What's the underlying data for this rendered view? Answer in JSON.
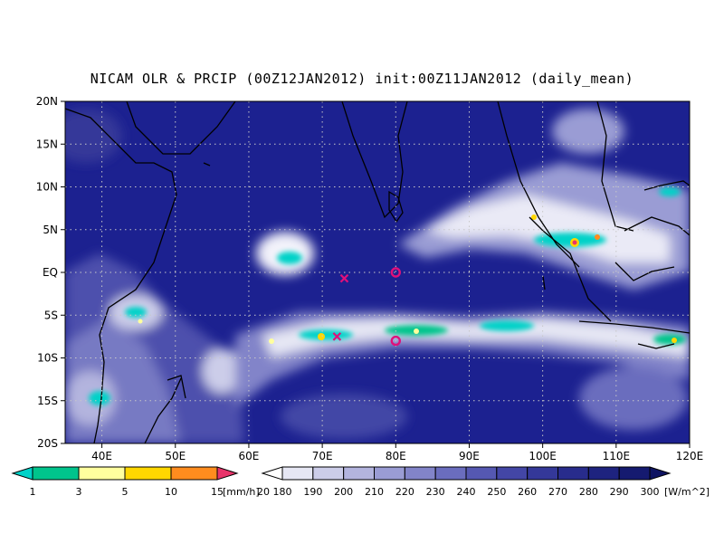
{
  "title": "NICAM OLR & PRCIP (00Z12JAN2012) init:00Z11JAN2012 (daily_mean)",
  "map": {
    "lon_range": [
      35,
      120
    ],
    "lat_range": [
      -20,
      20
    ],
    "lat_ticks": [
      "20N",
      "15N",
      "10N",
      "5N",
      "EQ",
      "5S",
      "10S",
      "15S",
      "20S"
    ],
    "lon_ticks": [
      "40E",
      "50E",
      "60E",
      "70E",
      "80E",
      "90E",
      "100E",
      "110E",
      "120E"
    ],
    "grid": true,
    "markers": [
      {
        "symbol": "x",
        "lon": 73,
        "lat": -0.7,
        "color": "#e0107a"
      },
      {
        "symbol": "x",
        "lon": 72,
        "lat": -7.5,
        "color": "#e0107a"
      },
      {
        "symbol": "o",
        "lon": 80,
        "lat": 0,
        "color": "#e0107a"
      },
      {
        "symbol": "o",
        "lon": 80,
        "lat": -8,
        "color": "#e0107a"
      }
    ]
  },
  "precip_colorbar": {
    "labels": [
      "1",
      "3",
      "5",
      "10",
      "15",
      "20"
    ],
    "unit": "[mm/h]",
    "colors": [
      "#00d2c8",
      "#00c48c",
      "#ffff9e",
      "#ffd700",
      "#ff8c1e",
      "#e8346a"
    ]
  },
  "olr_colorbar": {
    "labels": [
      "180",
      "190",
      "200",
      "210",
      "220",
      "230",
      "240",
      "250",
      "260",
      "270",
      "280",
      "290",
      "300"
    ],
    "unit": "[W/m^2]",
    "colors": [
      "#ffffff",
      "#e6e7f4",
      "#cccde9",
      "#b3b4de",
      "#9a9cd4",
      "#8284c9",
      "#6a6dbe",
      "#5558b2",
      "#4346a6",
      "#343899",
      "#282c8c",
      "#1e237f",
      "#151a70",
      "#0e1362"
    ]
  }
}
